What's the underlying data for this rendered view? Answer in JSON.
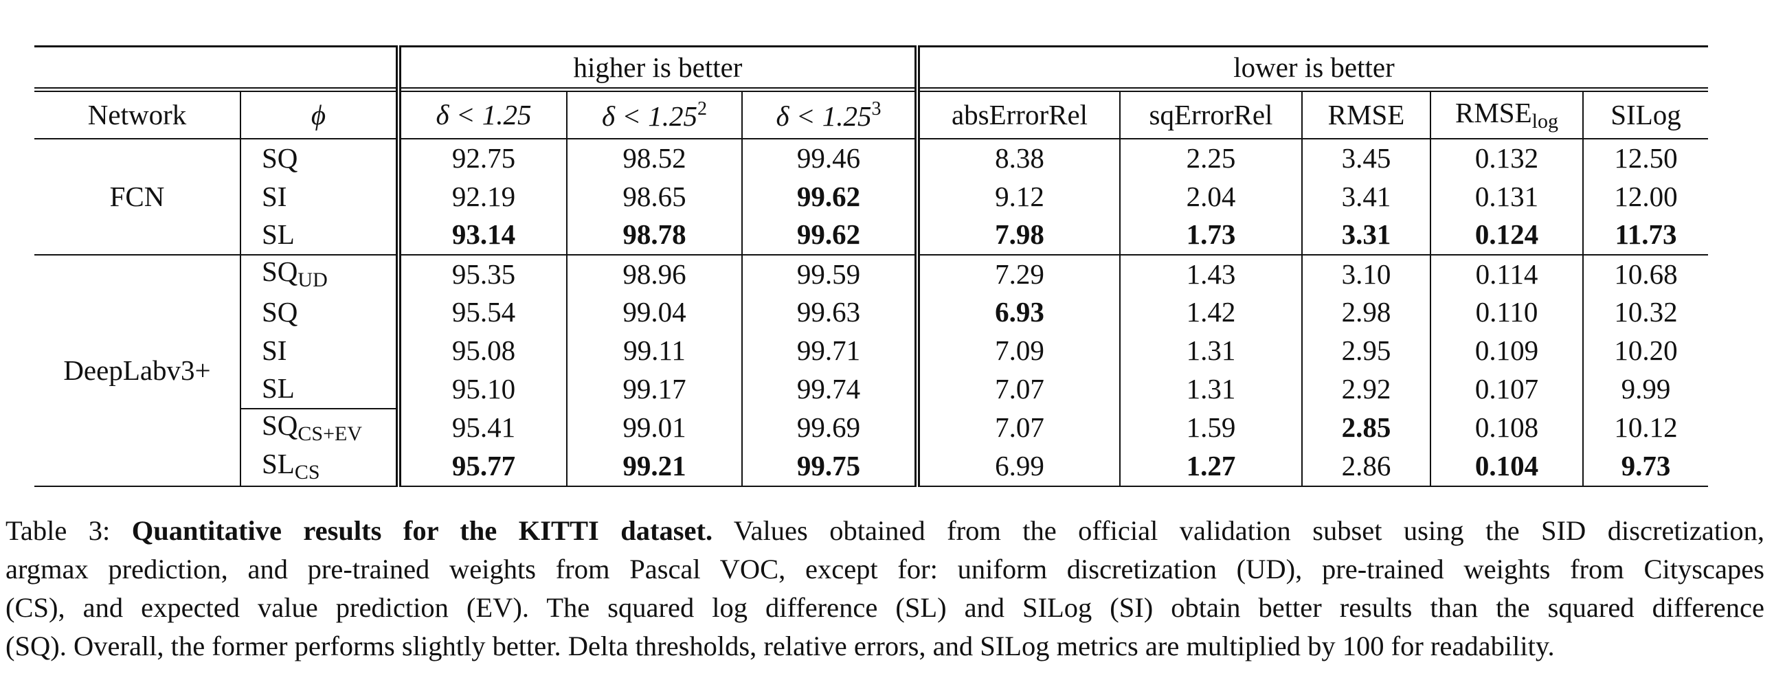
{
  "table": {
    "group_headers": {
      "higher": "higher is better",
      "lower": "lower is better"
    },
    "columns": {
      "network": "Network",
      "phi": "ϕ",
      "d1": "δ < 1.25",
      "d2_base": "δ < 1.25",
      "d2_exp": "2",
      "d3_base": "δ < 1.25",
      "d3_exp": "3",
      "abs": "absErrorRel",
      "sq": "sqErrorRel",
      "rmse": "RMSE",
      "rmselog_base": "RMSE",
      "rmselog_sub": "log",
      "silog": "SILog"
    },
    "networks": {
      "fcn": "FCN",
      "deeplab": "DeepLabv3+"
    },
    "rows": [
      {
        "phi": "SQ",
        "phi_sub": "",
        "vals": [
          "92.75",
          "98.52",
          "99.46",
          "8.38",
          "2.25",
          "3.45",
          "0.132",
          "12.50"
        ]
      },
      {
        "phi": "SI",
        "phi_sub": "",
        "vals": [
          "92.19",
          "98.65",
          "99.62",
          "9.12",
          "2.04",
          "3.41",
          "0.131",
          "12.00"
        ]
      },
      {
        "phi": "SL",
        "phi_sub": "",
        "vals": [
          "93.14",
          "98.78",
          "99.62",
          "7.98",
          "1.73",
          "3.31",
          "0.124",
          "11.73"
        ]
      },
      {
        "phi": "SQ",
        "phi_sub": "UD",
        "vals": [
          "95.35",
          "98.96",
          "99.59",
          "7.29",
          "1.43",
          "3.10",
          "0.114",
          "10.68"
        ]
      },
      {
        "phi": "SQ",
        "phi_sub": "",
        "vals": [
          "95.54",
          "99.04",
          "99.63",
          "6.93",
          "1.42",
          "2.98",
          "0.110",
          "10.32"
        ]
      },
      {
        "phi": "SI",
        "phi_sub": "",
        "vals": [
          "95.08",
          "99.11",
          "99.71",
          "7.09",
          "1.31",
          "2.95",
          "0.109",
          "10.20"
        ]
      },
      {
        "phi": "SL",
        "phi_sub": "",
        "vals": [
          "95.10",
          "99.17",
          "99.74",
          "7.07",
          "1.31",
          "2.92",
          "0.107",
          "9.99"
        ]
      },
      {
        "phi": "SQ",
        "phi_sub": "CS+EV",
        "vals": [
          "95.41",
          "99.01",
          "99.69",
          "7.07",
          "1.59",
          "2.85",
          "0.108",
          "10.12"
        ]
      },
      {
        "phi": "SL",
        "phi_sub": "CS",
        "vals": [
          "95.77",
          "99.21",
          "99.75",
          "6.99",
          "1.27",
          "2.86",
          "0.104",
          "9.73"
        ]
      }
    ]
  },
  "caption": {
    "label": "Table 3: ",
    "title": "Quantitative results for the KITTI dataset.",
    "line1_rest": " Values obtained from the official validation subset using the SID discretization,",
    "line2": "argmax prediction, and pre-trained weights from Pascal VOC, except for: uniform discretization (UD), pre-trained weights from Cityscapes",
    "line3": "(CS), and expected value prediction (EV). The squared log difference (SL) and SILog (SI) obtain better results than the squared difference",
    "line4": "(SQ). Overall, the former performs slightly better. Delta thresholds, relative errors, and SILog metrics are multiplied by 100 for readability."
  }
}
